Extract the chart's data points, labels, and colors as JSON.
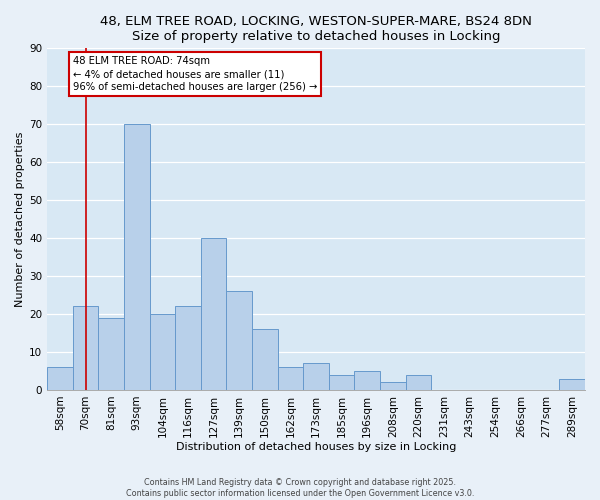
{
  "title": "48, ELM TREE ROAD, LOCKING, WESTON-SUPER-MARE, BS24 8DN",
  "subtitle": "Size of property relative to detached houses in Locking",
  "xlabel": "Distribution of detached houses by size in Locking",
  "ylabel": "Number of detached properties",
  "bar_labels": [
    "58sqm",
    "70sqm",
    "81sqm",
    "93sqm",
    "104sqm",
    "116sqm",
    "127sqm",
    "139sqm",
    "150sqm",
    "162sqm",
    "173sqm",
    "185sqm",
    "196sqm",
    "208sqm",
    "220sqm",
    "231sqm",
    "243sqm",
    "254sqm",
    "266sqm",
    "277sqm",
    "289sqm"
  ],
  "bar_values": [
    6,
    22,
    19,
    70,
    20,
    22,
    40,
    26,
    16,
    6,
    7,
    4,
    5,
    2,
    4,
    0,
    0,
    0,
    0,
    0,
    3
  ],
  "bar_color": "#b8d0ea",
  "bar_edge_color": "#6699cc",
  "vline_x_index": 1,
  "vline_color": "#cc0000",
  "annotation_title": "48 ELM TREE ROAD: 74sqm",
  "annotation_line1": "← 4% of detached houses are smaller (11)",
  "annotation_line2": "96% of semi-detached houses are larger (256) →",
  "annotation_box_color": "#ffffff",
  "annotation_box_edge": "#cc0000",
  "ylim": [
    0,
    90
  ],
  "yticks": [
    0,
    10,
    20,
    30,
    40,
    50,
    60,
    70,
    80,
    90
  ],
  "footer1": "Contains HM Land Registry data © Crown copyright and database right 2025.",
  "footer2": "Contains public sector information licensed under the Open Government Licence v3.0.",
  "bg_color": "#e8f0f8",
  "plot_bg_color": "#d8e8f4",
  "title_fontsize": 9.5,
  "axis_label_fontsize": 8.0,
  "tick_fontsize": 7.5,
  "footer_fontsize": 5.8
}
